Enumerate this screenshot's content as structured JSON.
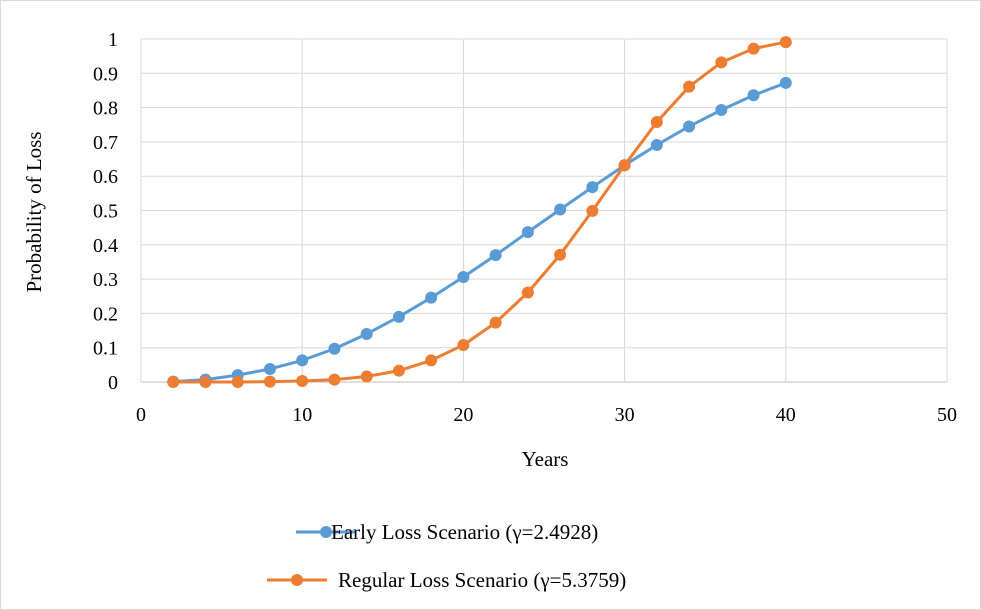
{
  "chart_data": {
    "type": "line",
    "xlabel": "Years",
    "ylabel": "Probability of Loss",
    "xlim": [
      0,
      50
    ],
    "ylim": [
      0,
      1
    ],
    "x_ticks": [
      0,
      10,
      20,
      30,
      40,
      50
    ],
    "y_ticks": [
      0,
      0.1,
      0.2,
      0.3,
      0.4,
      0.5,
      0.6,
      0.7,
      0.8,
      0.9,
      1
    ],
    "grid": true,
    "legend_position": "bottom",
    "x": [
      2,
      4,
      6,
      8,
      10,
      12,
      14,
      16,
      18,
      20,
      22,
      24,
      26,
      28,
      30,
      32,
      34,
      36,
      38,
      40
    ],
    "series": [
      {
        "name": "Early Loss Scenario (γ=2.4928)",
        "color": "#5b9bd5",
        "values": [
          0.001,
          0.007,
          0.02,
          0.038,
          0.063,
          0.097,
          0.14,
          0.19,
          0.246,
          0.306,
          0.37,
          0.437,
          0.503,
          0.568,
          0.632,
          0.691,
          0.745,
          0.793,
          0.836,
          0.872
        ]
      },
      {
        "name": "Regular Loss Scenario (γ=5.3759)",
        "color": "#ed7d31",
        "values": [
          0.0,
          0.0,
          0.0,
          0.001,
          0.003,
          0.007,
          0.016,
          0.033,
          0.063,
          0.108,
          0.173,
          0.261,
          0.371,
          0.499,
          0.632,
          0.758,
          0.861,
          0.932,
          0.972,
          0.991
        ]
      }
    ]
  }
}
